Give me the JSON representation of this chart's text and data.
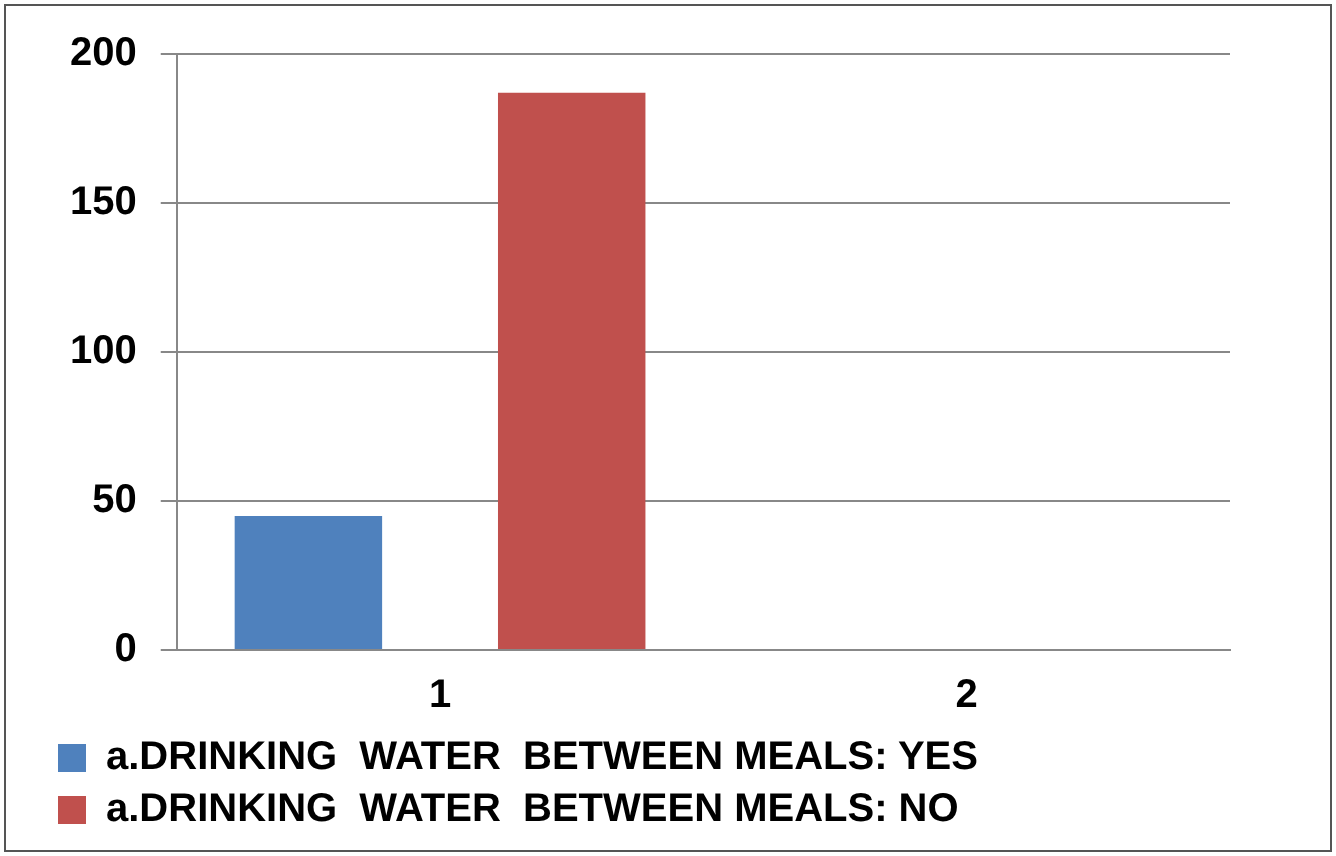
{
  "chart_data": {
    "type": "bar",
    "categories": [
      "1",
      "2"
    ],
    "series": [
      {
        "name": "a.DRINKING  WATER  BETWEEN MEALS: YES",
        "color": "#4f81bd",
        "values": [
          45,
          null
        ]
      },
      {
        "name": "a.DRINKING  WATER  BETWEEN MEALS: NO",
        "color": "#c0504d",
        "values": [
          187,
          null
        ]
      }
    ],
    "ylim": [
      0,
      200
    ],
    "yticks": [
      0,
      50,
      100,
      150,
      200
    ],
    "grid": "y",
    "legend": "bottom"
  }
}
